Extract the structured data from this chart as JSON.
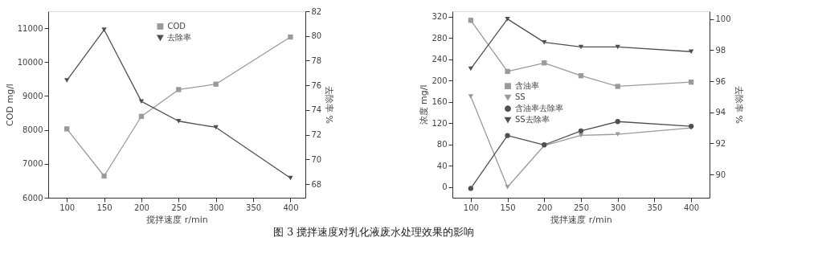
{
  "chart_data": [
    {
      "type": "line",
      "xlabel": "搅拌速度 r/min",
      "ylabel": "COD mg/l",
      "y2label": "去除率 %",
      "annotations": [
        "图 3   搅拌速度对乳化液废水处理效果的影响"
      ],
      "x": [
        100,
        150,
        200,
        250,
        300,
        400
      ],
      "xlim": [
        75,
        420
      ],
      "xticks": [
        100,
        150,
        200,
        250,
        300,
        350,
        400
      ],
      "ylim": [
        6000,
        11500
      ],
      "yticks": [
        6000,
        7000,
        8000,
        9000,
        10000,
        11000
      ],
      "y2lim": [
        66.9,
        82
      ],
      "y2ticks": [
        68,
        70,
        72,
        74,
        76,
        78,
        80,
        82
      ],
      "grid": false,
      "legend": "top",
      "series": [
        {
          "name": "COD",
          "color": "#9a9a9a",
          "marker": "square",
          "values": [
            8030,
            6640,
            8400,
            9190,
            9350,
            10740
          ]
        },
        {
          "name": "去除率",
          "color": "#505050",
          "marker": "triangle",
          "axis": "y2",
          "values": [
            76.4,
            80.5,
            74.7,
            73.1,
            72.6,
            68.5
          ]
        }
      ]
    },
    {
      "type": "line",
      "xlabel": "搅拌速度 r/min",
      "ylabel": "浓度 mg/l",
      "y2label": "去除率 %",
      "x": [
        100,
        150,
        200,
        250,
        300,
        400
      ],
      "xlim": [
        75,
        425
      ],
      "xticks": [
        100,
        150,
        200,
        250,
        300,
        350,
        400
      ],
      "ylim": [
        -20,
        330
      ],
      "yticks": [
        0,
        40,
        80,
        120,
        160,
        200,
        240,
        280,
        320
      ],
      "y2lim": [
        88.5,
        100.5
      ],
      "y2ticks": [
        90,
        92,
        94,
        96,
        98,
        100
      ],
      "grid": false,
      "legend": "left",
      "series": [
        {
          "name": "含油率",
          "color": "#9a9a9a",
          "marker": "square",
          "values": [
            313,
            217,
            233,
            209,
            189,
            197
          ]
        },
        {
          "name": "SS",
          "color": "#9a9a9a",
          "marker": "triangle",
          "values": [
            170,
            0,
            78,
            97,
            99,
            111
          ]
        },
        {
          "name": "含油率去除率",
          "color": "#505050",
          "marker": "circle",
          "axis": "y2",
          "values": [
            89.1,
            92.5,
            91.9,
            92.8,
            93.4,
            93.1
          ]
        },
        {
          "name": "SS去除率",
          "color": "#505050",
          "marker": "triangle",
          "axis": "y2",
          "values": [
            96.8,
            100.0,
            98.5,
            98.2,
            98.2,
            97.9
          ]
        }
      ]
    }
  ]
}
